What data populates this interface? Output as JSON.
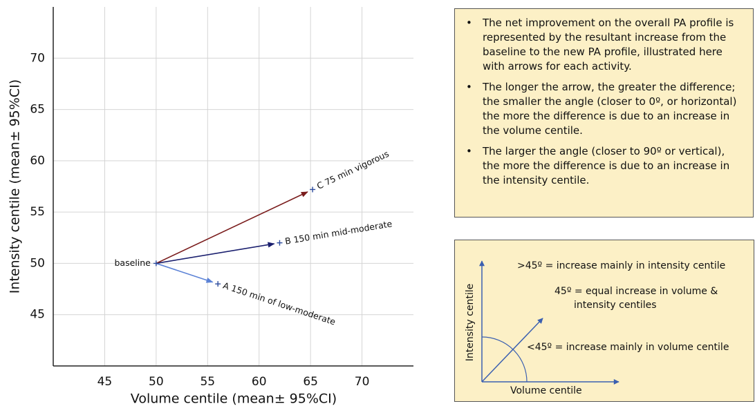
{
  "chart_data": {
    "type": "arrow",
    "xlabel": "Volume centile (mean± 95%CI)",
    "ylabel": "Intensity centile (mean± 95%CI)",
    "xlim": [
      40,
      75
    ],
    "ylim": [
      40,
      75
    ],
    "xticks": [
      45,
      50,
      55,
      60,
      65,
      70
    ],
    "yticks": [
      45,
      50,
      55,
      60,
      65,
      70
    ],
    "grid": true,
    "baseline": {
      "label": "baseline",
      "x": 50,
      "y": 50,
      "color": "#1f2a6e"
    },
    "series": [
      {
        "name": "A 150 min of low-moderate",
        "color": "#5b82d6",
        "x": 56,
        "y": 48
      },
      {
        "name": "B 150 min mid-moderate",
        "color": "#1a1f6e",
        "x": 62,
        "y": 52
      },
      {
        "name": "C 75 min vigorous",
        "color": "#7a1c1c",
        "x": 65.2,
        "y": 57.2
      }
    ]
  },
  "notes": {
    "bullets": [
      "The net improvement on the overall PA profile is represented  by the resultant increase from the baseline to the new PA profile, illustrated here with arrows for each activity.",
      "The longer the arrow, the greater the difference; the smaller the angle (closer to 0º, or horizontal) the more the difference is due to an increase in the volume centile.",
      "The larger the angle (closer to 90º or vertical), the more the difference is due to an increase in the intensity centile."
    ]
  },
  "diagram": {
    "y_axis": "Intensity centile",
    "x_axis": "Volume centile",
    "above": ">45º = increase mainly in intensity centile",
    "equal_1": "45º = equal increase in volume &",
    "equal_2": "intensity centiles",
    "below": "<45º = increase mainly in volume centile"
  }
}
